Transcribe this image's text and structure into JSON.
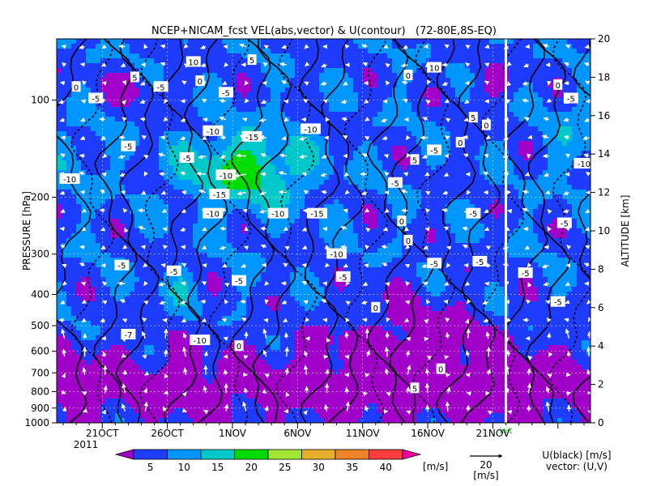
{
  "chart_data": {
    "type": "heatmap",
    "title": "NCEP+NICAM_fcst VEL(abs,vector) & U(contour)   (72-80E,8S-EQ)",
    "ylabel_left": "PRESSURE [hPa]",
    "ylabel_right": "ALTITUDE [km]",
    "x_tick_labels": [
      "21OCT",
      "26OCT",
      "1NOV",
      "6NOV",
      "11NOV",
      "16NOV",
      "21NOV"
    ],
    "x_year_label": "2011",
    "x_range_days": [
      -3.5,
      37.5
    ],
    "y_left_ticks": [
      100,
      200,
      300,
      400,
      500,
      600,
      700,
      800,
      900,
      1000
    ],
    "y_right_ticks": [
      0,
      2,
      4,
      6,
      8,
      10,
      12,
      14,
      16,
      18,
      20
    ],
    "y_range_km": [
      0,
      20
    ],
    "init_label": "init",
    "init_day": 31,
    "colorbar": {
      "ticks": [
        "5",
        "10",
        "15",
        "20",
        "25",
        "30",
        "35",
        "40"
      ],
      "unit": "[m/s]",
      "colors": [
        "#a000c8",
        "#1e3cff",
        "#0096ff",
        "#00c8c8",
        "#00dc00",
        "#a0e632",
        "#e6af2d",
        "#f08228",
        "#fa3c3c",
        "#f000a0"
      ]
    },
    "vector_ref": {
      "value": "20",
      "unit": "[m/s]"
    },
    "legend_u": "U(black) [m/s]",
    "legend_vec": "vector: (U,V)",
    "contour_labels": [
      {
        "v": "5",
        "d": 2.5,
        "k": 18.0
      },
      {
        "v": "10",
        "d": 7.0,
        "k": 18.8
      },
      {
        "v": "5",
        "d": 11.5,
        "k": 18.9
      },
      {
        "v": "0",
        "d": 7.5,
        "k": 17.8
      },
      {
        "v": "-5",
        "d": 4.5,
        "k": 17.5
      },
      {
        "v": "-5",
        "d": 9.5,
        "k": 17.2
      },
      {
        "v": "-5",
        "d": -0.5,
        "k": 16.9
      },
      {
        "v": "0",
        "d": -2.0,
        "k": 17.5
      },
      {
        "v": "-5",
        "d": 2.0,
        "k": 14.4
      },
      {
        "v": "-10",
        "d": -2.5,
        "k": 12.7
      },
      {
        "v": "-10",
        "d": 8.5,
        "k": 15.2
      },
      {
        "v": "-15",
        "d": 11.5,
        "k": 14.9
      },
      {
        "v": "-10",
        "d": 16.0,
        "k": 15.3
      },
      {
        "v": "-5",
        "d": 6.5,
        "k": 13.8
      },
      {
        "v": "-10",
        "d": 9.5,
        "k": 12.9
      },
      {
        "v": "-15",
        "d": 9.0,
        "k": 11.9
      },
      {
        "v": "-10",
        "d": 8.5,
        "k": 10.9
      },
      {
        "v": "-10",
        "d": 13.5,
        "k": 10.9
      },
      {
        "v": "-15",
        "d": 16.5,
        "k": 10.9
      },
      {
        "v": "-10",
        "d": 18.0,
        "k": 8.8
      },
      {
        "v": "-5",
        "d": 10.5,
        "k": 7.4
      },
      {
        "v": "-5",
        "d": 1.5,
        "k": 8.2
      },
      {
        "v": "-5",
        "d": 5.5,
        "k": 7.9
      },
      {
        "v": "-5",
        "d": 18.5,
        "k": 7.6
      },
      {
        "v": "-7",
        "d": 2.0,
        "k": 4.6
      },
      {
        "v": "-10",
        "d": 7.5,
        "k": 4.3
      },
      {
        "v": "0",
        "d": 10.5,
        "k": 4.0
      },
      {
        "v": "0",
        "d": 21.0,
        "k": 6.0
      },
      {
        "v": "0",
        "d": 23.5,
        "k": 18.1
      },
      {
        "v": "10",
        "d": 25.5,
        "k": 18.5
      },
      {
        "v": "5",
        "d": 28.5,
        "k": 15.9
      },
      {
        "v": "0",
        "d": 29.5,
        "k": 15.5
      },
      {
        "v": "0",
        "d": 27.5,
        "k": 14.6
      },
      {
        "v": "-5",
        "d": 25.5,
        "k": 14.2
      },
      {
        "v": "5",
        "d": 24.0,
        "k": 13.7
      },
      {
        "v": "-5",
        "d": 22.5,
        "k": 12.5
      },
      {
        "v": "-5",
        "d": 28.5,
        "k": 10.9
      },
      {
        "v": "0",
        "d": 23.0,
        "k": 10.5
      },
      {
        "v": "0",
        "d": 23.5,
        "k": 9.5
      },
      {
        "v": "-5",
        "d": 25.5,
        "k": 8.3
      },
      {
        "v": "-5",
        "d": 29.0,
        "k": 8.4
      },
      {
        "v": "-5",
        "d": 32.5,
        "k": 7.8
      },
      {
        "v": "-5",
        "d": 35.0,
        "k": 6.3
      },
      {
        "v": "0",
        "d": 26.0,
        "k": 2.8
      },
      {
        "v": "5",
        "d": 24.0,
        "k": 1.8
      },
      {
        "v": "0",
        "d": 35.0,
        "k": 17.6
      },
      {
        "v": "-5",
        "d": 36.0,
        "k": 16.9
      },
      {
        "v": "-10",
        "d": 37.0,
        "k": 13.5
      },
      {
        "v": "-5",
        "d": 35.5,
        "k": 10.4
      },
      {
        "v": "5",
        "d": 38.5,
        "k": 5.6
      }
    ]
  }
}
